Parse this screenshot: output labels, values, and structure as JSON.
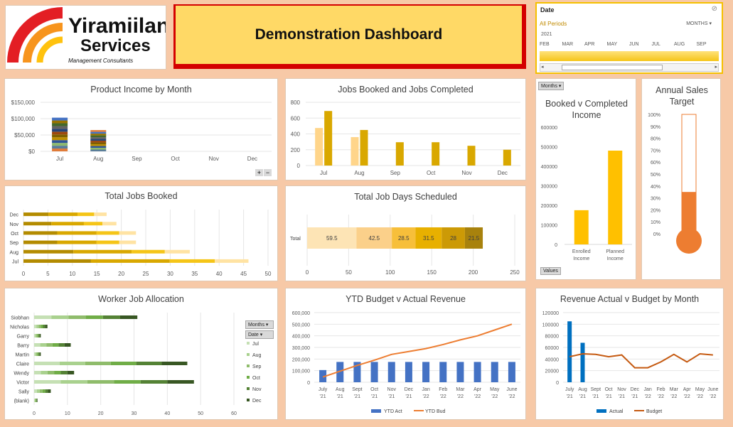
{
  "logo": {
    "line1": "Yiramiilan",
    "line2": "Services",
    "tagline": "Management  Consultants"
  },
  "banner": {
    "title": "Demonstration  Dashboard"
  },
  "timeline": {
    "header": "Date",
    "all_periods": "All Periods",
    "level": "MONTHS",
    "year": "2021",
    "months": [
      "FEB",
      "MAR",
      "APR",
      "MAY",
      "JUN",
      "JUL",
      "AUG",
      "SEP"
    ],
    "filter_icon": "filter-clear-icon"
  },
  "product_income": {
    "chart_data": {
      "type": "bar",
      "title": "Product Income by Month",
      "categories": [
        "Jul",
        "Aug",
        "Sep",
        "Oct",
        "Nov",
        "Dec"
      ],
      "yticks": [
        "$150,000",
        "$100,000",
        "$50,000",
        "$0"
      ],
      "ylim": [
        0,
        150000
      ],
      "stacked_totals": [
        103000,
        65000,
        0,
        0,
        0,
        0
      ]
    },
    "expand_icons": [
      "plus-icon",
      "minus-icon"
    ]
  },
  "jobs_booked_completed": {
    "chart_data": {
      "type": "bar",
      "title": "Jobs Booked and Jobs Completed",
      "categories": [
        "Jul",
        "Aug",
        "Sep",
        "Oct",
        "Nov",
        "Dec"
      ],
      "yticks": [
        "800",
        "600",
        "400",
        "200",
        "0"
      ],
      "ylim": [
        0,
        800
      ],
      "series": [
        {
          "values": [
            475,
            360,
            0,
            0,
            0,
            0
          ]
        },
        {
          "values": [
            690,
            450,
            295,
            295,
            250,
            200
          ]
        }
      ]
    }
  },
  "booked_v_completed": {
    "chart_data": {
      "type": "bar",
      "title": "Booked v Completed Income",
      "categories": [
        "Enrolled Income",
        "Planned Income"
      ],
      "values": [
        175000,
        480000
      ],
      "yticks": [
        "600000",
        "500000",
        "400000",
        "300000",
        "200000",
        "100000",
        "0"
      ],
      "ylim": [
        0,
        600000
      ]
    },
    "months_button": "Months",
    "values_button": "Values"
  },
  "annual_sales": {
    "chart_data": {
      "type": "bar",
      "title": "Annual Sales Target",
      "value_percent": 35,
      "yticks": [
        "100%",
        "90%",
        "80%",
        "70%",
        "60%",
        "50%",
        "40%",
        "30%",
        "20%",
        "10%",
        "0%"
      ]
    }
  },
  "total_jobs_booked": {
    "chart_data": {
      "type": "bar",
      "title": "Total Jobs Booked",
      "categories": [
        "Dec",
        "Nov",
        "Oct",
        "Sep",
        "Aug",
        "Jul"
      ],
      "values": [
        17,
        19,
        23,
        23,
        34,
        46
      ],
      "xticks": [
        "0",
        "5",
        "10",
        "15",
        "20",
        "25",
        "30",
        "35",
        "40",
        "45",
        "50"
      ],
      "xlim": [
        0,
        50
      ]
    }
  },
  "total_job_days": {
    "chart_data": {
      "type": "bar",
      "title": "Total Job Days Scheduled",
      "categories": [
        "Total"
      ],
      "segments": [
        59.5,
        42.5,
        28.5,
        31.5,
        28,
        21.5
      ],
      "segment_labels": [
        "59.5",
        "42.5",
        "28.5",
        "31.5",
        "28",
        "21.5"
      ],
      "xticks": [
        "0",
        "50",
        "100",
        "150",
        "200",
        "250"
      ],
      "xlim": [
        0,
        250
      ]
    }
  },
  "worker_allocation": {
    "chart_data": {
      "type": "bar",
      "title": "Worker Job Allocation",
      "categories": [
        "Siobhan",
        "Nicholas",
        "Garry",
        "Barry",
        "Martin",
        "Claire",
        "Wendy",
        "Victor",
        "Sally",
        "(blank)"
      ],
      "values": [
        31,
        4,
        2,
        11,
        2,
        46,
        12,
        48,
        5,
        1
      ],
      "xticks": [
        "0",
        "10",
        "20",
        "30",
        "40",
        "50",
        "60"
      ],
      "xlim": [
        0,
        60
      ],
      "legend": [
        "Jul",
        "Aug",
        "Sep",
        "Oct",
        "Nov",
        "Dec"
      ]
    },
    "filter_buttons": [
      "Months",
      "Date"
    ]
  },
  "ytd_budget": {
    "chart_data": {
      "type": "bar",
      "title": "YTD Budget v Actual Revenue",
      "categories": [
        "July '21",
        "Aug '21",
        "Sept '21",
        "Oct '21",
        "Nov '21",
        "Dec '21",
        "Jan '22",
        "Feb '22",
        "Mar '22",
        "Apr '22",
        "May '22",
        "June '22"
      ],
      "series": [
        {
          "name": "YTD Act",
          "values": [
            105000,
            175000,
            175000,
            175000,
            175000,
            175000,
            175000,
            175000,
            175000,
            175000,
            175000,
            175000
          ]
        },
        {
          "name": "YTD Bud",
          "values": [
            45000,
            95000,
            145000,
            190000,
            240000,
            265000,
            290000,
            325000,
            365000,
            400000,
            450000,
            500000
          ]
        }
      ],
      "yticks": [
        "600,000",
        "500,000",
        "400,000",
        "300,000",
        "200,000",
        "100,000",
        "0"
      ],
      "ylim": [
        0,
        600000
      ]
    }
  },
  "revenue_by_month": {
    "chart_data": {
      "type": "bar",
      "title": "Revenue Actual v Budget by Month",
      "categories": [
        "July '21",
        "Aug '21",
        "Sept '21",
        "Oct '21",
        "Nov '21",
        "Dec '21",
        "Jan '22",
        "Feb '22",
        "Mar '22",
        "Apr '22",
        "May '22",
        "June '22"
      ],
      "series": [
        {
          "name": "Actual",
          "values": [
            105000,
            68000,
            0,
            0,
            0,
            0,
            0,
            0,
            0,
            0,
            0,
            0
          ]
        },
        {
          "name": "Budget",
          "values": [
            44000,
            49000,
            48000,
            44000,
            47000,
            25000,
            25000,
            35000,
            48000,
            35000,
            49000,
            47000
          ]
        }
      ],
      "yticks": [
        "120000",
        "100000",
        "80000",
        "60000",
        "40000",
        "20000",
        "0"
      ],
      "ylim": [
        0,
        120000
      ]
    }
  },
  "colors": {
    "background": "#f7c9a7",
    "banner": "#ffd966",
    "banner_border": "#d40000",
    "gold_dark": "#d9a800",
    "gold_light": "#ffd58a",
    "orange": "#ed7d31",
    "blue": "#4472c4",
    "green": "#548235"
  }
}
